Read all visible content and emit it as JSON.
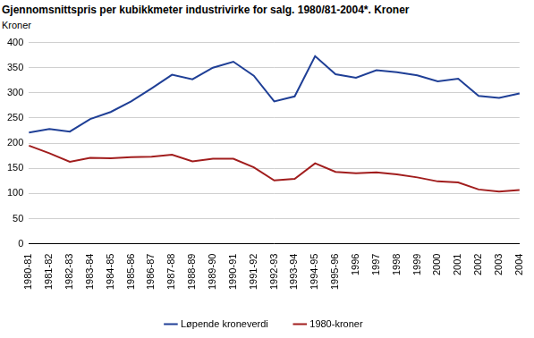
{
  "chart_data": {
    "type": "line",
    "title": "Gjennomsnittspris per kubikkmeter industrivirke for salg. 1980/81-2004*. Kroner",
    "y_label": "Kroner",
    "categories": [
      "1980-81",
      "1981-82",
      "1982-83",
      "1983-84",
      "1984-85",
      "1985-86",
      "1986-87",
      "1987-88",
      "1988-89",
      "1989-90",
      "1990-91",
      "1991-92",
      "1992-93",
      "1993-94",
      "1994-95",
      "1995-96",
      "1996",
      "1997",
      "1998",
      "1999",
      "2000",
      "2001",
      "2002",
      "2003",
      "2004"
    ],
    "series": [
      {
        "name": "Løpende kroneverdi",
        "color": "#1f3f96",
        "values": [
          221,
          228,
          223,
          248,
          262,
          283,
          309,
          336,
          327,
          350,
          362,
          334,
          283,
          293,
          373,
          337,
          330,
          345,
          341,
          335,
          323,
          328,
          294,
          290,
          299
        ]
      },
      {
        "name": "1980-kroner",
        "color": "#a11d1d",
        "values": [
          195,
          180,
          163,
          171,
          170,
          172,
          173,
          177,
          164,
          169,
          169,
          152,
          126,
          129,
          160,
          143,
          140,
          142,
          138,
          132,
          124,
          122,
          108,
          104,
          107
        ]
      }
    ],
    "ylim": [
      0,
      400
    ],
    "yticks": [
      0,
      50,
      100,
      150,
      200,
      250,
      300,
      350,
      400
    ],
    "grid": true,
    "legend": "bottom"
  }
}
